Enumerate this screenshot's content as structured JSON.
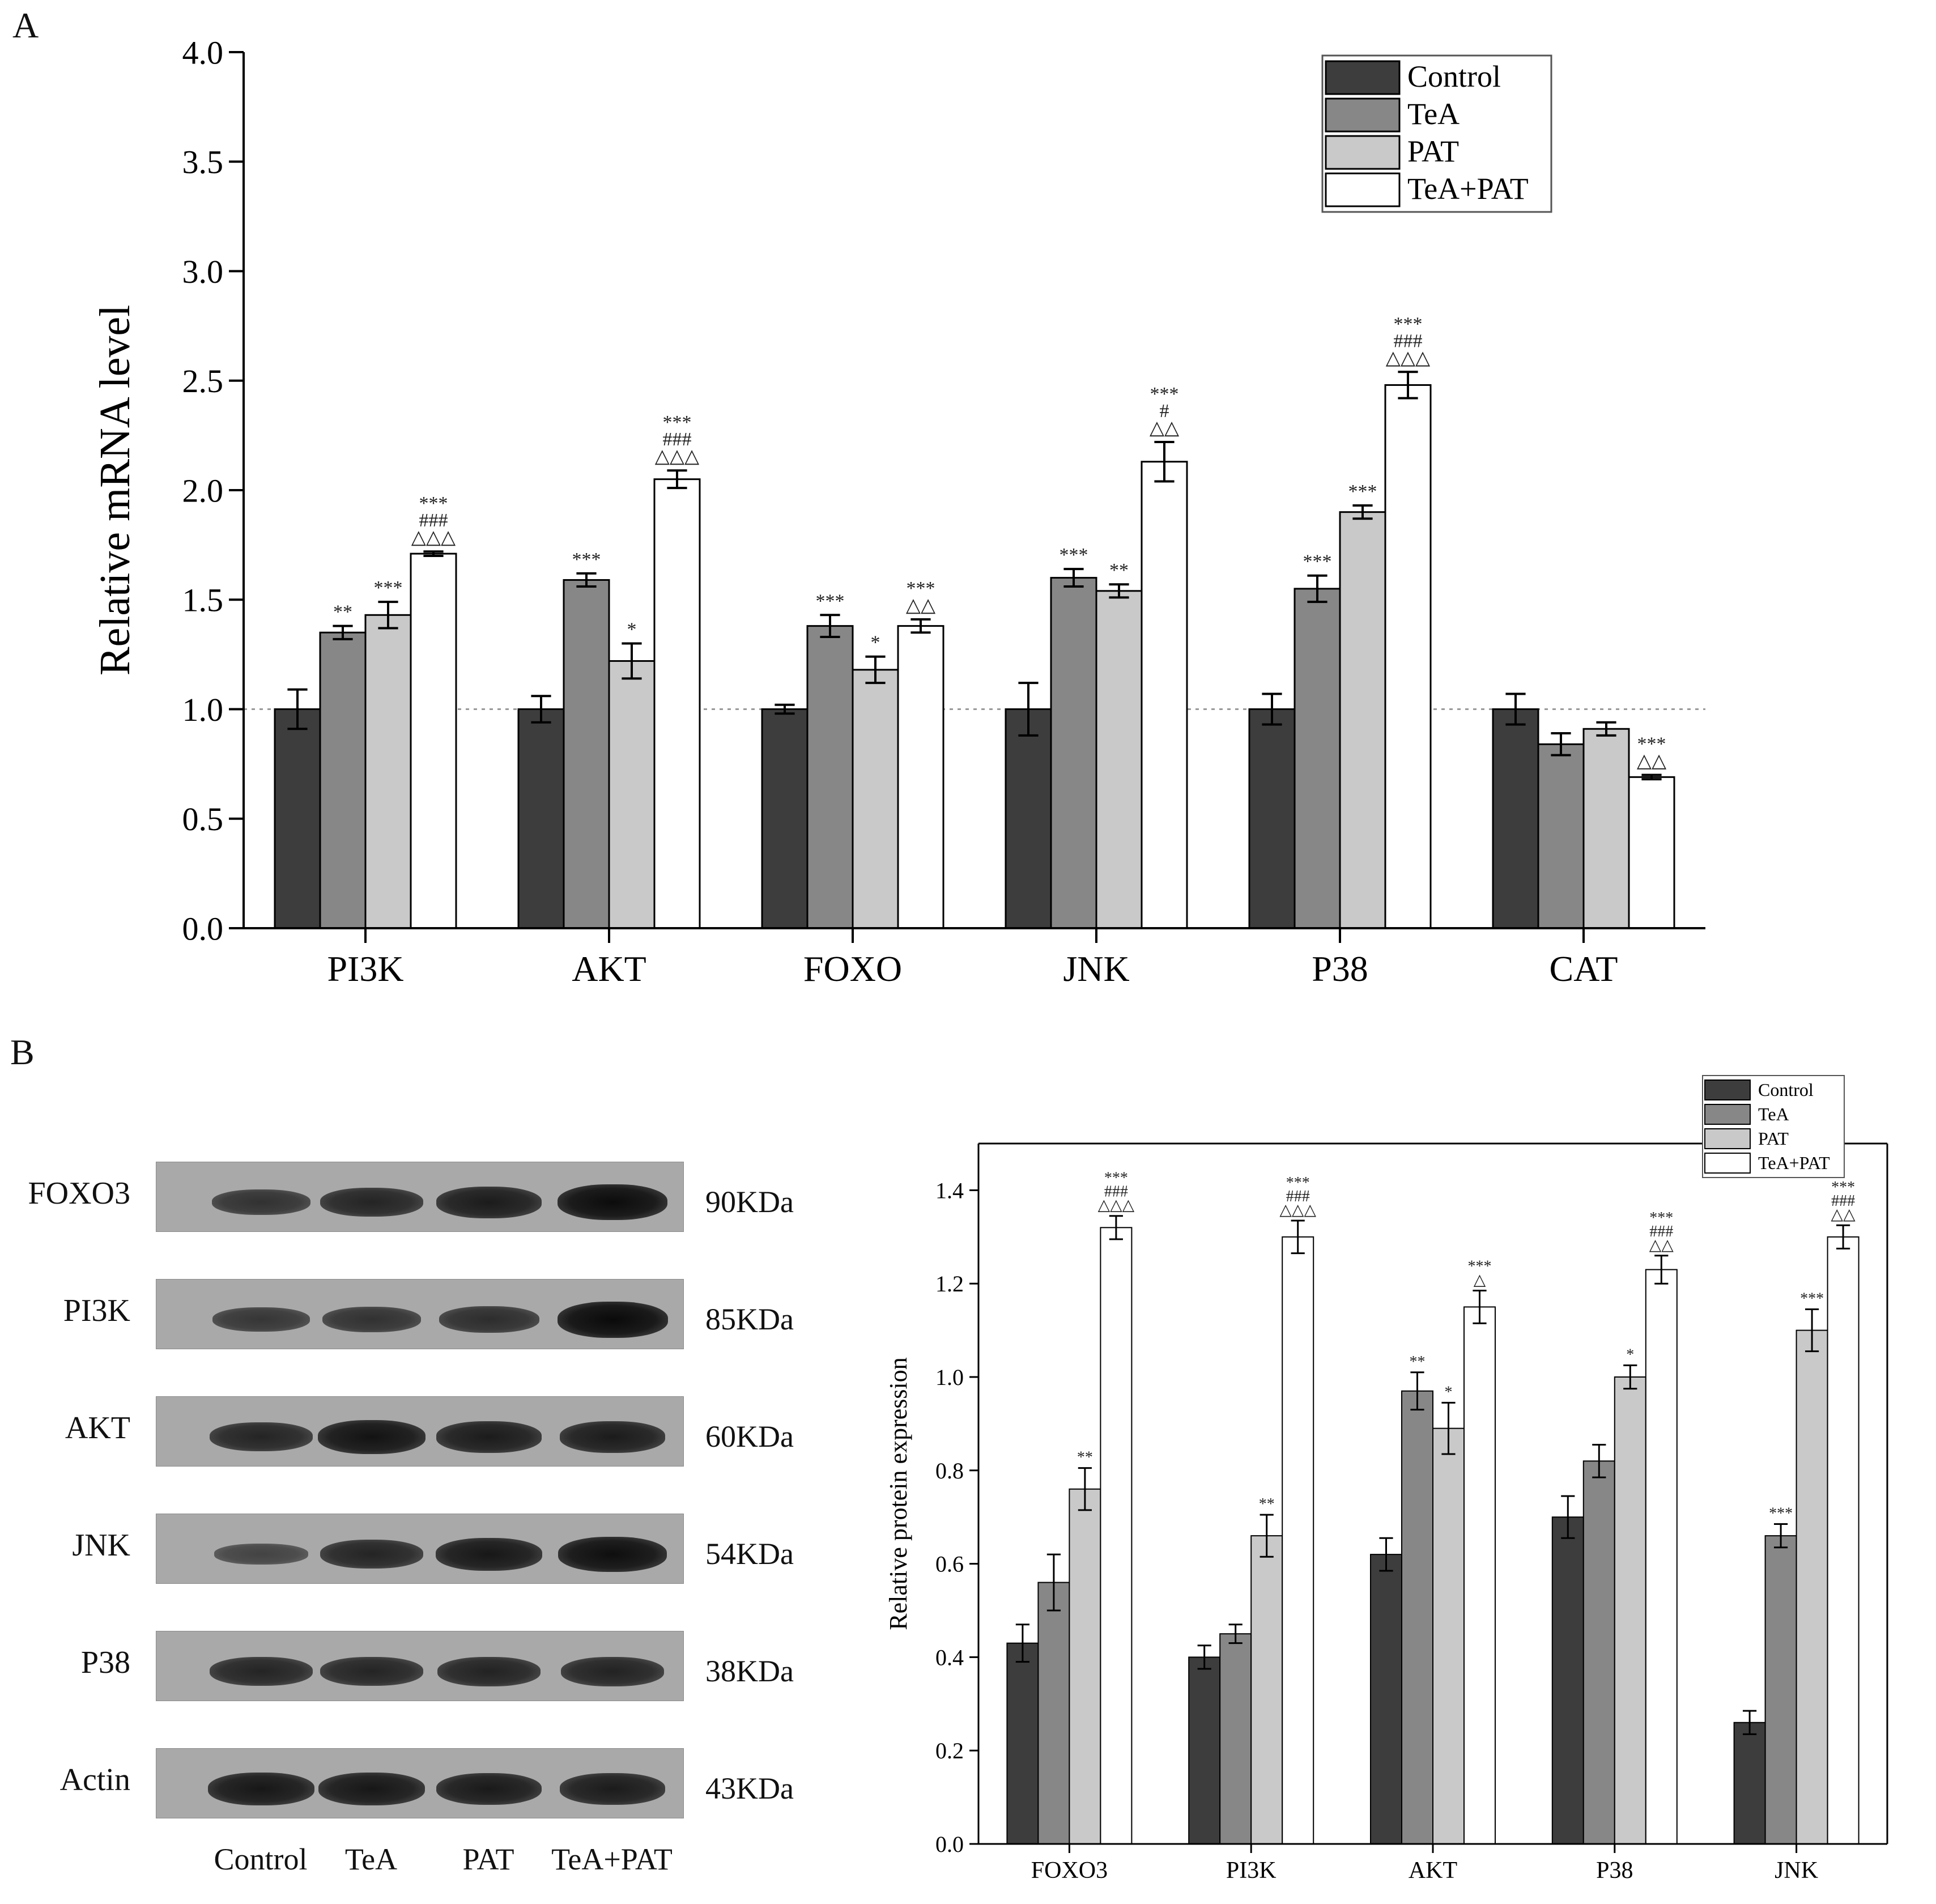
{
  "panels": {
    "a": "A",
    "b": "B"
  },
  "colors": {
    "Control": "#3d3d3d",
    "TeA": "#878787",
    "PAT": "#c9c9c9",
    "TeA+PAT": "#ffffff",
    "axis": "#000000",
    "refline": "#9a9a9a"
  },
  "chart_data": [
    {
      "type": "bar",
      "title": "",
      "xlabel": "",
      "ylabel": "Relative mRNA level",
      "ylim": [
        0,
        4.0
      ],
      "yticks": [
        "0.0",
        "0.5",
        "1.0",
        "1.5",
        "2.0",
        "2.5",
        "3.0",
        "3.5",
        "4.0"
      ],
      "reference_line": 1.0,
      "legend_position": "top-right",
      "categories": [
        "PI3K",
        "AKT",
        "FOXO",
        "JNK",
        "P38",
        "CAT"
      ],
      "series": [
        {
          "name": "Control",
          "values": [
            1.0,
            1.0,
            1.0,
            1.0,
            1.0,
            1.0
          ],
          "errors": [
            0.09,
            0.06,
            0.02,
            0.12,
            0.07,
            0.07
          ],
          "annotations": [
            "",
            "",
            "",
            "",
            "",
            ""
          ]
        },
        {
          "name": "TeA",
          "values": [
            1.35,
            1.59,
            1.38,
            1.6,
            1.55,
            0.84
          ],
          "errors": [
            0.03,
            0.03,
            0.05,
            0.04,
            0.06,
            0.05
          ],
          "annotations": [
            "**",
            "***",
            "***",
            "***",
            "***",
            ""
          ]
        },
        {
          "name": "PAT",
          "values": [
            1.43,
            1.22,
            1.18,
            1.54,
            1.9,
            0.91
          ],
          "errors": [
            0.06,
            0.08,
            0.06,
            0.03,
            0.03,
            0.03
          ],
          "annotations": [
            "***",
            "*",
            "*",
            "**",
            "***",
            ""
          ]
        },
        {
          "name": "TeA+PAT",
          "values": [
            1.71,
            2.05,
            1.38,
            2.13,
            2.48,
            0.69
          ],
          "errors": [
            0.01,
            0.04,
            0.03,
            0.09,
            0.06,
            0.01
          ],
          "annotations": [
            "***\n###\n△△△",
            "***\n###\n△△△",
            "***\n△△",
            "***\n#\n△△",
            "***\n###\n△△△",
            "***\n△△"
          ]
        }
      ]
    },
    {
      "type": "bar",
      "title": "",
      "xlabel": "",
      "ylabel": "Relative protein expression",
      "ylim": [
        0,
        1.5
      ],
      "yticks": [
        "0.0",
        "0.2",
        "0.4",
        "0.6",
        "0.8",
        "1.0",
        "1.2",
        "1.4"
      ],
      "legend_position": "top-right",
      "categories": [
        "FOXO3",
        "PI3K",
        "AKT",
        "P38",
        "JNK"
      ],
      "series": [
        {
          "name": "Control",
          "values": [
            0.43,
            0.4,
            0.62,
            0.7,
            0.26
          ],
          "errors": [
            0.04,
            0.025,
            0.035,
            0.045,
            0.025
          ],
          "annotations": [
            "",
            "",
            "",
            "",
            ""
          ]
        },
        {
          "name": "TeA",
          "values": [
            0.56,
            0.45,
            0.97,
            0.82,
            0.66
          ],
          "errors": [
            0.06,
            0.02,
            0.04,
            0.035,
            0.025
          ],
          "annotations": [
            "",
            "",
            "**",
            "",
            "***"
          ]
        },
        {
          "name": "PAT",
          "values": [
            0.76,
            0.66,
            0.89,
            1.0,
            1.1
          ],
          "errors": [
            0.045,
            0.045,
            0.055,
            0.025,
            0.045
          ],
          "annotations": [
            "**",
            "**",
            "*",
            "*",
            "***"
          ]
        },
        {
          "name": "TeA+PAT",
          "values": [
            1.32,
            1.3,
            1.15,
            1.23,
            1.3
          ],
          "errors": [
            0.025,
            0.035,
            0.035,
            0.03,
            0.025
          ],
          "annotations": [
            "***\n###\n△△△",
            "***\n###\n△△△",
            "***\n△",
            "***\n###\n△△",
            "***\n###\n△△"
          ]
        }
      ]
    }
  ],
  "western_blot": {
    "proteins": [
      {
        "name": "FOXO3",
        "size": "90KDa",
        "intensities": [
          0.55,
          0.7,
          0.8,
          0.98
        ]
      },
      {
        "name": "PI3K",
        "size": "85KDa",
        "intensities": [
          0.5,
          0.55,
          0.6,
          1.0
        ]
      },
      {
        "name": "AKT",
        "size": "60KDa",
        "intensities": [
          0.7,
          0.9,
          0.8,
          0.8
        ]
      },
      {
        "name": "JNK",
        "size": "54KDa",
        "intensities": [
          0.35,
          0.7,
          0.85,
          0.95
        ]
      },
      {
        "name": "P38",
        "size": "38KDa",
        "intensities": [
          0.7,
          0.7,
          0.72,
          0.72
        ]
      },
      {
        "name": "Actin",
        "size": "43KDa",
        "intensities": [
          0.85,
          0.85,
          0.82,
          0.8
        ]
      }
    ],
    "lanes": [
      "Control",
      "TeA",
      "PAT",
      "TeA+PAT"
    ]
  }
}
